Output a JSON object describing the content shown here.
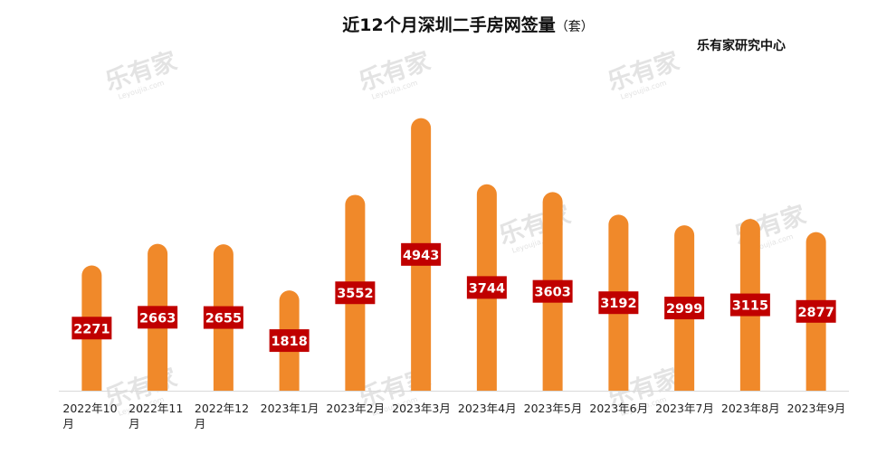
{
  "chart_data": {
    "type": "bar",
    "title": "近12个月深圳二手房网签量",
    "unit": "（套）",
    "source": "乐有家研究中心",
    "categories": [
      [
        "2022年10",
        "月"
      ],
      [
        "2022年11",
        "月"
      ],
      [
        "2022年12",
        "月"
      ],
      [
        "2023年1月"
      ],
      [
        "2023年2月"
      ],
      [
        "2023年3月"
      ],
      [
        "2023年4月"
      ],
      [
        "2023年5月"
      ],
      [
        "2023年6月"
      ],
      [
        "2023年7月"
      ],
      [
        "2023年8月"
      ],
      [
        "2023年9月"
      ]
    ],
    "values": [
      2271,
      2663,
      2655,
      1818,
      3552,
      4943,
      3744,
      3603,
      3192,
      2999,
      3115,
      2877
    ],
    "ylim": [
      0,
      5200
    ],
    "bar_color": "#F0892A",
    "label_bg_color": "#C00000",
    "grid": false
  },
  "watermark": {
    "text": "乐有家",
    "sub": "Leyoujia.com"
  }
}
